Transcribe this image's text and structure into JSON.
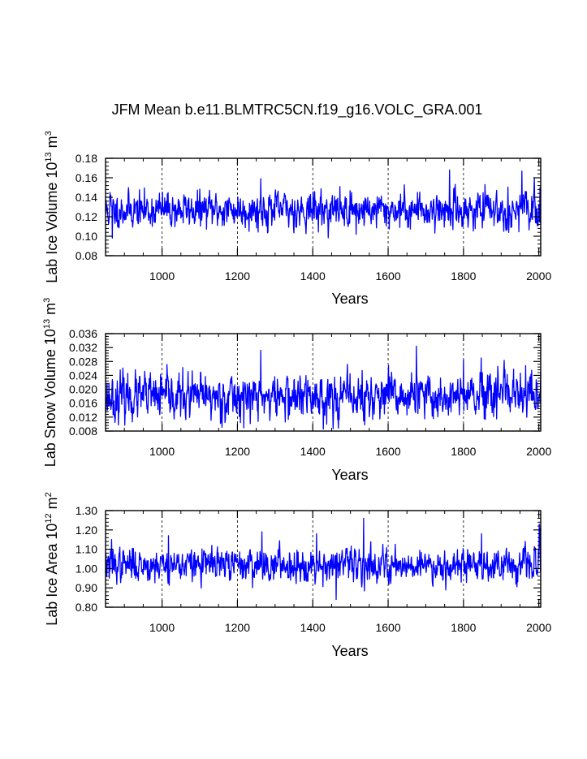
{
  "figure": {
    "title": "JFM Mean b.e11.BLMTRC5CN.f19_g16.VOLC_GRA.001"
  },
  "chart_data": [
    {
      "type": "line",
      "ylabel": "Lab Ice Volume 10",
      "ylabel_exponent": "13",
      "ylabel_unit": " m",
      "ylabel_unit_exponent": "3",
      "xlabel": "Years",
      "xlim": [
        850,
        2005
      ],
      "ylim": [
        0.08,
        0.18
      ],
      "xticks": [
        1000,
        1200,
        1400,
        1600,
        1800,
        2000
      ],
      "xtick_labels": [
        "1000",
        "1200",
        "1400",
        "1600",
        "1800",
        "2000"
      ],
      "yticks": [
        0.08,
        0.1,
        0.12,
        0.14,
        0.16,
        0.18
      ],
      "ytick_labels": [
        "0.08",
        "0.10",
        "0.12",
        "0.14",
        "0.16",
        "0.18"
      ],
      "gridlines_x": [
        1000,
        1200,
        1400,
        1600,
        1800
      ],
      "series_color": "#0000ff",
      "series": {
        "name": "Lab Ice Volume",
        "x_start": 850,
        "x_end": 2005,
        "mean": 0.127,
        "std": 0.009,
        "seed": 11,
        "spikes": [
          [
            862,
            0.145
          ],
          [
            868,
            0.098
          ],
          [
            1262,
            0.159
          ],
          [
            1515,
            0.102
          ],
          [
            1763,
            0.168
          ],
          [
            1955,
            0.167
          ],
          [
            1920,
            0.104
          ],
          [
            2003,
            0.15
          ]
        ]
      }
    },
    {
      "type": "line",
      "ylabel": "Lab Snow Volume 10",
      "ylabel_exponent": "13",
      "ylabel_unit": " m",
      "ylabel_unit_exponent": "3",
      "xlabel": "Years",
      "xlim": [
        850,
        2005
      ],
      "ylim": [
        0.008,
        0.036
      ],
      "xticks": [
        1000,
        1200,
        1400,
        1600,
        1800,
        2000
      ],
      "xtick_labels": [
        "1000",
        "1200",
        "1400",
        "1600",
        "1800",
        "2000"
      ],
      "yticks": [
        0.008,
        0.012,
        0.016,
        0.02,
        0.024,
        0.028,
        0.032,
        0.036
      ],
      "ytick_labels": [
        "0.008",
        "0.012",
        "0.016",
        "0.020",
        "0.024",
        "0.028",
        "0.032",
        "0.036"
      ],
      "gridlines_x": [
        1000,
        1200,
        1400,
        1600,
        1800
      ],
      "series_color": "#0000ff",
      "series": {
        "name": "Lab Snow Volume",
        "x_start": 850,
        "x_end": 2005,
        "mean": 0.0178,
        "std": 0.0032,
        "seed": 23,
        "spikes": [
          [
            1262,
            0.0312
          ],
          [
            1675,
            0.0324
          ],
          [
            1538,
            0.0098
          ],
          [
            875,
            0.0105
          ],
          [
            1965,
            0.0268
          ],
          [
            1800,
            0.0285
          ]
        ]
      }
    },
    {
      "type": "line",
      "ylabel": "Lab Ice Area 10",
      "ylabel_exponent": "12",
      "ylabel_unit": " m",
      "ylabel_unit_exponent": "2",
      "xlabel": "Years",
      "xlim": [
        850,
        2005
      ],
      "ylim": [
        0.8,
        1.3
      ],
      "xticks": [
        1000,
        1200,
        1400,
        1600,
        1800,
        2000
      ],
      "xtick_labels": [
        "1000",
        "1200",
        "1400",
        "1600",
        "1800",
        "2000"
      ],
      "yticks": [
        0.8,
        0.9,
        1.0,
        1.1,
        1.2,
        1.3
      ],
      "ytick_labels": [
        "0.80",
        "0.90",
        "1.00",
        "1.10",
        "1.20",
        "1.30"
      ],
      "gridlines_x": [
        1000,
        1200,
        1400,
        1600,
        1800
      ],
      "series_color": "#0000ff",
      "series": {
        "name": "Lab Ice Area",
        "x_start": 850,
        "x_end": 2005,
        "mean": 1.02,
        "std": 0.042,
        "seed": 37,
        "spikes": [
          [
            1535,
            1.26
          ],
          [
            1462,
            0.84
          ],
          [
            2001,
            1.23
          ],
          [
            2003,
            1.21
          ],
          [
            1017,
            1.17
          ],
          [
            1265,
            1.19
          ],
          [
            1410,
            1.18
          ],
          [
            866,
            1.15
          ],
          [
            1848,
            1.18
          ]
        ]
      }
    }
  ]
}
